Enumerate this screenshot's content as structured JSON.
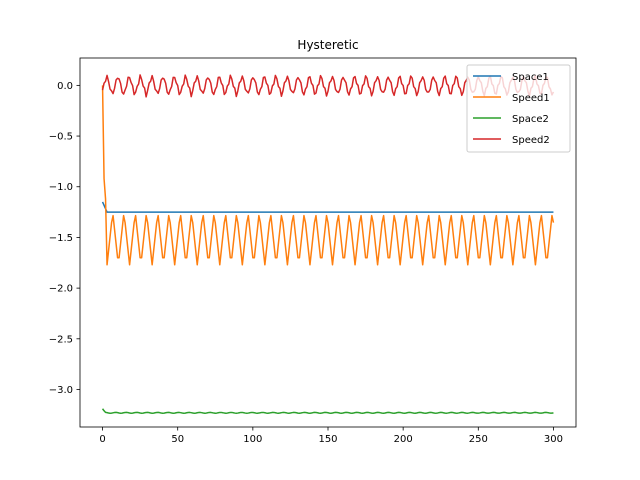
{
  "chart_data": {
    "type": "line",
    "title": "Hysteretic",
    "xlabel": "",
    "ylabel": "",
    "xlim": [
      -15,
      315
    ],
    "ylim": [
      -3.37,
      0.27
    ],
    "xticks": [
      0,
      50,
      100,
      150,
      200,
      250,
      300
    ],
    "xtick_labels": [
      "0",
      "50",
      "100",
      "150",
      "200",
      "250",
      "300"
    ],
    "yticks": [
      0.0,
      -0.5,
      -1.0,
      -1.5,
      -2.0,
      -2.5,
      -3.0
    ],
    "ytick_labels": [
      "0.0",
      "−0.5",
      "−1.0",
      "−1.5",
      "−2.0",
      "−2.5",
      "−3.0"
    ],
    "grid": false,
    "legend_position": "top-right",
    "series_description": "Each series is sampled at integer steps 0..300. Speed1 decays from 0 to about -1.25 in the first 3 steps, then oscillates between about -1.77 and -1.25 with a period of about 7.5 steps. Space1 starts at -1.15 and settles at -1.25. Space2 starts at -3.19 and settles near -3.23 with tiny ripple. Speed2 oscillates around 0 between about -0.10 and +0.10 with a period of about 7.5 steps.",
    "series": [
      {
        "name": "Space1",
        "color": "#1f77b4",
        "start": -1.15,
        "settle": -1.25,
        "x_range": [
          0,
          300
        ]
      },
      {
        "name": "Speed1",
        "color": "#ff7f0e",
        "start": 0.0,
        "settle_max": -1.25,
        "settle_min": -1.77,
        "period": 7.5,
        "x_range": [
          0,
          300
        ]
      },
      {
        "name": "Space2",
        "color": "#2ca02c",
        "start": -3.19,
        "settle": -3.23,
        "x_range": [
          0,
          300
        ]
      },
      {
        "name": "Speed2",
        "color": "#d62728",
        "center": 0.0,
        "amplitude": 0.1,
        "period": 7.5,
        "x_range": [
          0,
          300
        ]
      }
    ]
  }
}
